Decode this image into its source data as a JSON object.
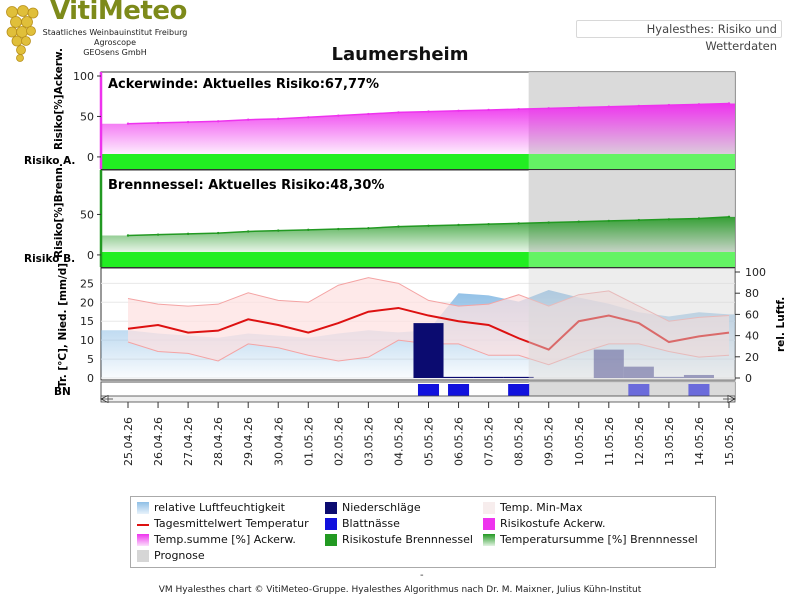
{
  "logo": {
    "title": "VitiMeteo",
    "line1": "Staatliches Weinbauinstitut Freiburg",
    "line2": "Agroscope",
    "line3": "GEOsens GmbH"
  },
  "header": {
    "link": "Hyalesthes: Risiko und Wetterdaten"
  },
  "title": "Laumersheim",
  "colors": {
    "ackerwinde": "#ee33ee",
    "brennnessel": "#229922",
    "risk_bar": "#22ee22",
    "prognose": "#d6d6d6",
    "temp_line": "#dd1111",
    "precip": "#0b0b70",
    "blattnaesse": "#1111dd",
    "humidity": "#a9cde8",
    "minmax_fill": "#fde0e0",
    "minmax_line": "#f4a3a3"
  },
  "labels": {
    "risiko_a": "Risiko A.",
    "risiko_b": "Risiko B.",
    "ackerwinde_ylabel": "Risiko[%]Ackerw.",
    "brennnessel_ylabel": "Risiko[%]Brenn.",
    "weather_ylabel": "Tr. [°C], Nied. [mm/d]",
    "humidity_ylabel": "rel. Luftf.",
    "bn": "BN"
  },
  "chart_data": {
    "type": "line",
    "dates": [
      "25.04.26",
      "26.04.26",
      "27.04.26",
      "28.04.26",
      "29.04.26",
      "30.04.26",
      "01.05.26",
      "02.05.26",
      "03.05.26",
      "04.05.26",
      "05.05.26",
      "06.05.26",
      "07.05.26",
      "08.05.26",
      "09.05.26",
      "10.05.26",
      "11.05.26",
      "12.05.26",
      "13.05.26",
      "14.05.26",
      "15.05.26"
    ],
    "prognose_start": "08.05.26",
    "panels": [
      {
        "name": "ackerwinde",
        "title": "Ackerwinde:  Aktuelles Risiko:67,77%",
        "ylim": [
          -10,
          100
        ],
        "yticks": [
          0,
          50,
          100
        ],
        "temperatursumme": [
          41,
          42,
          43,
          44,
          46,
          47,
          49,
          51,
          53,
          55,
          56,
          57,
          58,
          59,
          60,
          61,
          62,
          63,
          64,
          65,
          66
        ],
        "risikostufe": "green"
      },
      {
        "name": "brennnessel",
        "title": "Brennnessel:  Aktuelles Risiko:48,30%",
        "ylim": [
          -10,
          100
        ],
        "yticks": [
          0,
          50
        ],
        "temperatursumme": [
          24,
          25,
          26,
          27,
          29,
          30,
          31,
          32,
          33,
          35,
          36,
          37,
          38,
          39,
          40,
          41,
          42,
          43,
          44,
          45,
          47
        ],
        "risikostufe": "green"
      },
      {
        "name": "weather",
        "ylim": [
          0,
          28
        ],
        "yticks": [
          0,
          5,
          10,
          15,
          20,
          25
        ],
        "y2lim": [
          0,
          100
        ],
        "y2ticks": [
          0,
          20,
          40,
          60,
          80,
          100
        ],
        "temp_mean": [
          13,
          14,
          12,
          12.5,
          15.5,
          14,
          12,
          14.5,
          17.5,
          18.5,
          16.5,
          15,
          14,
          10.5,
          7.5,
          15,
          16.5,
          14.5,
          9.5,
          11,
          12
        ],
        "temp_max": [
          21,
          19.5,
          19,
          19.5,
          22.5,
          20.5,
          20,
          24.5,
          26.5,
          25,
          20.5,
          19,
          19.5,
          22,
          19,
          22,
          23,
          19,
          15,
          16,
          16.5
        ],
        "temp_min": [
          9.5,
          7,
          6.5,
          4.5,
          9,
          8,
          6,
          4.5,
          5.5,
          10,
          9,
          9,
          6,
          6,
          3.5,
          6.5,
          9,
          9,
          7,
          5.5,
          6
        ],
        "humidity": [
          45,
          42,
          40,
          38,
          42,
          40,
          38,
          42,
          45,
          43,
          45,
          80,
          78,
          72,
          83,
          76,
          70,
          62,
          58,
          62,
          60
        ],
        "niederschlag": [
          0,
          0,
          0,
          0,
          0,
          0,
          0,
          0,
          0,
          0,
          14.5,
          0.3,
          0.3,
          0.3,
          0,
          0,
          7.5,
          3,
          0.3,
          0.8,
          0
        ],
        "blattnaesse": [
          "05.05.26",
          "06.05.26",
          "08.05.26",
          "12.05.26",
          "14.05.26"
        ]
      }
    ]
  },
  "legend": [
    {
      "label": "relative Luftfeuchtigkeit",
      "swatch": "humidity"
    },
    {
      "label": "Niederschläge",
      "swatch": "precip"
    },
    {
      "label": "Temp. Min-Max",
      "swatch": "minmax"
    },
    {
      "label": "Tagesmittelwert Temperatur",
      "swatch": "templine"
    },
    {
      "label": "Blattnässe",
      "swatch": "blattnaesse"
    },
    {
      "label": "Risikostufe Ackerw.",
      "swatch": "ackerwinde"
    },
    {
      "label": "Temp.summe [%] Ackerw.",
      "swatch": "ackerwinde-grad"
    },
    {
      "label": "Risikostufe Brennnessel",
      "swatch": "brennnessel"
    },
    {
      "label": "Temperatursumme [%] Brennnessel",
      "swatch": "brennnessel-grad"
    },
    {
      "label": "Prognose",
      "swatch": "prognose"
    }
  ],
  "footer": {
    "dash": "-",
    "text": "VM Hyalesthes chart © VitiMeteo-Gruppe. Hyalesthes Algorithmus nach Dr. M. Maixner, Julius Kühn-Institut"
  }
}
